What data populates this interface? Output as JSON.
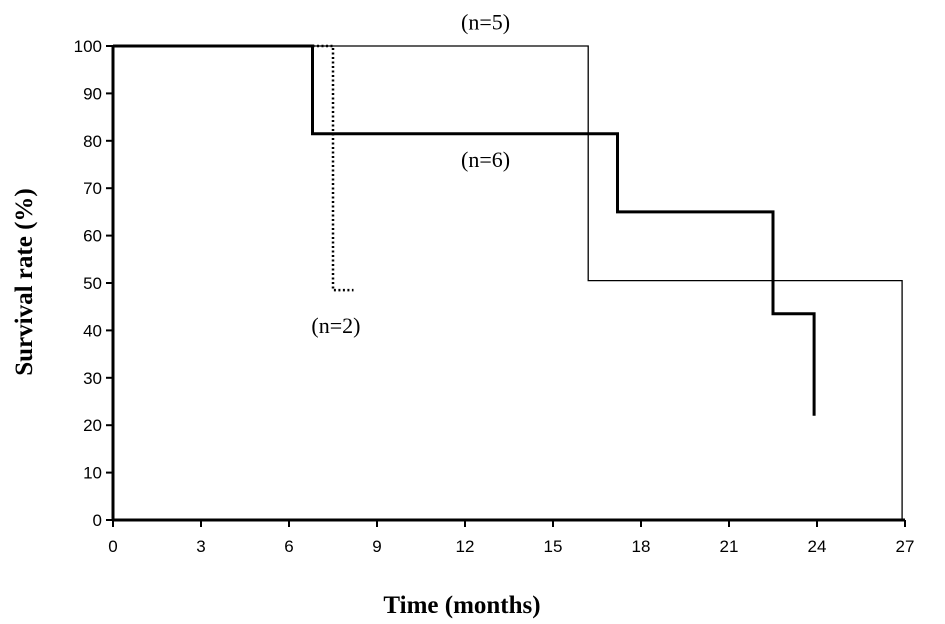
{
  "chart_data": {
    "type": "line",
    "title": "",
    "xlabel": "Time (months)",
    "ylabel": "Survival rate (%)",
    "xlim": [
      0,
      27
    ],
    "ylim": [
      0,
      100
    ],
    "xticks": [
      0,
      3,
      6,
      9,
      12,
      15,
      18,
      21,
      24,
      27
    ],
    "yticks": [
      0,
      10,
      20,
      30,
      40,
      50,
      60,
      70,
      80,
      90,
      100
    ],
    "grid": false,
    "legend": "none",
    "series": [
      {
        "name": "(n=5)",
        "style": "thin-solid",
        "color": "#000000",
        "x": [
          0,
          16.2,
          16.2,
          26.9,
          26.9
        ],
        "y": [
          100,
          100,
          50.5,
          50.5,
          0
        ]
      },
      {
        "name": "(n=6)",
        "style": "thick-solid",
        "color": "#000000",
        "x": [
          0,
          6.8,
          6.8,
          17.2,
          17.2,
          22.5,
          22.5,
          23.9,
          23.9
        ],
        "y": [
          100,
          100,
          81.5,
          81.5,
          65,
          65,
          43.5,
          43.5,
          22
        ]
      },
      {
        "name": "(n=2)",
        "style": "dotted",
        "color": "#000000",
        "x": [
          6.8,
          7.5,
          7.5,
          8.2
        ],
        "y": [
          100,
          100,
          48.5,
          48.5
        ]
      }
    ],
    "annotations": [
      {
        "text": "(n=5)",
        "series": 0,
        "x": 12.7,
        "y": 103.5
      },
      {
        "text": "(n=6)",
        "series": 1,
        "x": 12.7,
        "y": 74.5
      },
      {
        "text": "(n=2)",
        "series": 2,
        "x": 7.6,
        "y": 39.5
      }
    ]
  }
}
